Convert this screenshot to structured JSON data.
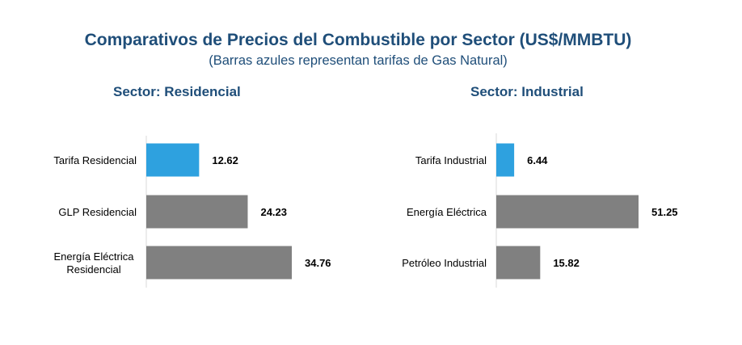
{
  "title": "Comparativos de Precios del Combustible por Sector (US$/MMBTU)",
  "subtitle": "(Barras azules representan tarifas de Gas Natural)",
  "colors": {
    "title": "#1f4e79",
    "gas_natural_bar": "#2ea1df",
    "other_bar": "#808080",
    "axis": "#d9d9d9"
  },
  "chart_data": [
    {
      "type": "bar",
      "orientation": "horizontal",
      "title": "Sector: Residencial",
      "categories": [
        [
          "Tarifa Residencial"
        ],
        [
          "GLP Residencial"
        ],
        [
          "Energía Eléctrica",
          "Residencial"
        ]
      ],
      "values": [
        12.62,
        24.23,
        34.76
      ],
      "value_labels": [
        "12.62",
        "24.23",
        "34.76"
      ],
      "bar_colors": [
        "#2ea1df",
        "#808080",
        "#808080"
      ],
      "xlim": [
        0,
        40
      ],
      "grid": false
    },
    {
      "type": "bar",
      "orientation": "horizontal",
      "title": "Sector: Industrial",
      "categories": [
        [
          "Tarifa Industrial"
        ],
        [
          "Energía Eléctrica"
        ],
        [
          "Petróleo Industrial"
        ]
      ],
      "values": [
        6.44,
        51.25,
        15.82
      ],
      "value_labels": [
        "6.44",
        "51.25",
        "15.82"
      ],
      "bar_colors": [
        "#2ea1df",
        "#808080",
        "#808080"
      ],
      "xlim": [
        0,
        60
      ],
      "grid": false
    }
  ]
}
